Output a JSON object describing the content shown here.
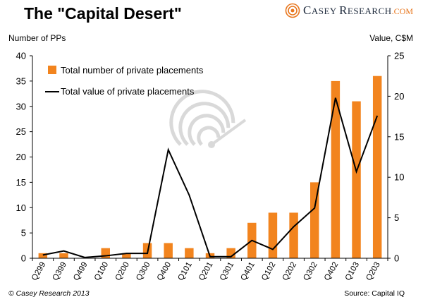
{
  "header": {
    "title": "The \"Capital Desert\"",
    "logo_initial_1": "C",
    "logo_rest_1": "ASEY ",
    "logo_initial_2": "R",
    "logo_rest_2": "ESEARCH",
    "logo_suffix": ".COM"
  },
  "footer": {
    "copyright": "© Casey Research 2013",
    "source": "Source: Capital IQ"
  },
  "colors": {
    "bar": "#f2841e",
    "line": "#000000",
    "watermark": "#d9d9d9"
  },
  "chart_data": {
    "type": "bar",
    "title": "The \"Capital Desert\"",
    "categories": [
      "Q299",
      "Q399",
      "Q499",
      "Q100",
      "Q200",
      "Q300",
      "Q400",
      "Q101",
      "Q201",
      "Q301",
      "Q401",
      "Q102",
      "Q202",
      "Q302",
      "Q402",
      "Q103",
      "Q203"
    ],
    "ylabel_left": "Number of PPs",
    "ylabel_right": "Value, C$M",
    "ylim_left": [
      0,
      40
    ],
    "yticks_left": [
      0,
      5,
      10,
      15,
      20,
      25,
      30,
      35,
      40
    ],
    "ylim_right": [
      0,
      25
    ],
    "yticks_right": [
      0,
      5,
      10,
      15,
      20,
      25
    ],
    "grid": false,
    "legend_position": "top-left",
    "series": [
      {
        "name": "Total number of private placements",
        "kind": "bar",
        "axis": "left",
        "values": [
          1,
          1,
          0,
          2,
          1,
          3,
          3,
          2,
          1,
          2,
          7,
          9,
          9,
          15,
          35,
          31,
          36
        ]
      },
      {
        "name": "Total value of private placements",
        "kind": "line",
        "axis": "right",
        "values": [
          0.4,
          0.9,
          0.1,
          0.3,
          0.6,
          0.6,
          13.4,
          7.8,
          0.2,
          0.2,
          2.2,
          1.1,
          3.9,
          6.2,
          19.8,
          10.7,
          17.6
        ]
      }
    ]
  }
}
